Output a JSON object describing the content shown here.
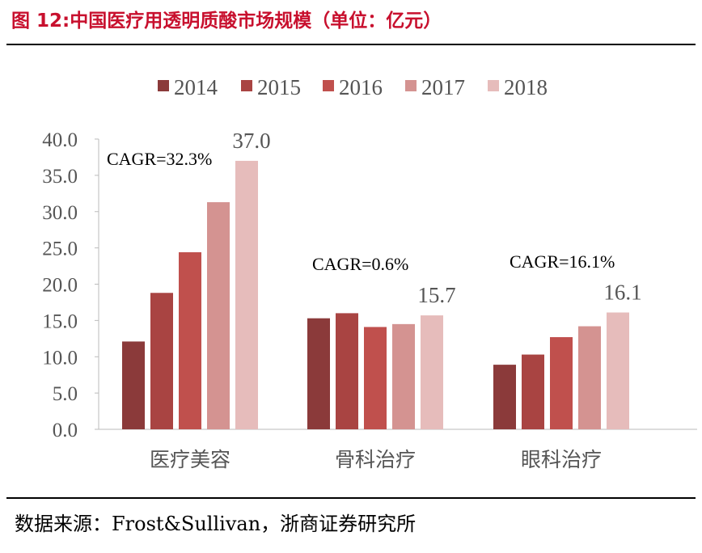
{
  "figure_title": "图 12:中国医疗用透明质酸市场规模（单位：亿元）",
  "source_note": "数据来源：Frost&Sullivan，浙商证券研究所",
  "colors": {
    "title": "#c8102e",
    "series": [
      "#8b3a3a",
      "#a94442",
      "#c0504d",
      "#d49391",
      "#e6bcbb"
    ]
  },
  "chart_data": {
    "type": "bar",
    "categories": [
      "医疗美容",
      "骨科治疗",
      "眼科治疗"
    ],
    "series": [
      {
        "name": "2014",
        "values": [
          12.1,
          15.3,
          8.9
        ]
      },
      {
        "name": "2015",
        "values": [
          18.8,
          16.0,
          10.3
        ]
      },
      {
        "name": "2016",
        "values": [
          24.4,
          14.1,
          12.7
        ]
      },
      {
        "name": "2017",
        "values": [
          31.3,
          14.5,
          14.2
        ]
      },
      {
        "name": "2018",
        "values": [
          37.0,
          15.7,
          16.1
        ]
      }
    ],
    "ylim": [
      0,
      40
    ],
    "yticks": [
      "0.0",
      "5.0",
      "10.0",
      "15.0",
      "20.0",
      "25.0",
      "30.0",
      "35.0",
      "40.0"
    ],
    "data_labels": [
      "37.0",
      "15.7",
      "16.1"
    ],
    "annotations": [
      "CAGR=32.3%",
      "CAGR=0.6%",
      "CAGR=16.1%"
    ],
    "legend_position": "top",
    "grid": false
  }
}
